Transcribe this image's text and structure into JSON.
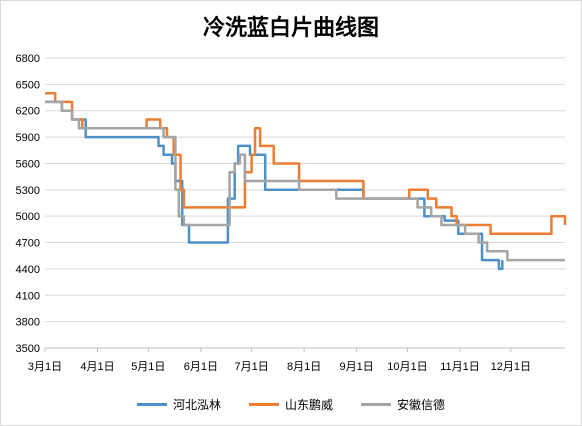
{
  "chart_data": {
    "type": "line",
    "title": "冷洗蓝白片曲线图",
    "xlabel": "",
    "ylabel": "",
    "ylim": [
      3500,
      6800
    ],
    "yticks": [
      3500,
      3800,
      4100,
      4400,
      4700,
      5000,
      5300,
      5600,
      5900,
      6200,
      6500,
      6800
    ],
    "xlim": [
      0,
      307
    ],
    "xtick_positions": [
      0,
      31,
      61,
      92,
      122,
      153,
      184,
      214,
      245,
      275
    ],
    "xtick_labels": [
      "3月1日",
      "4月1日",
      "5月1日",
      "6月1日",
      "7月1日",
      "8月1日",
      "9月1日",
      "10月1日",
      "11月1日",
      "12月1日"
    ],
    "grid": "horizontal",
    "legend_position": "bottom",
    "series": [
      {
        "name": "河北泓林",
        "color": "#4e90c8",
        "x": [
          0,
          10,
          16,
          24,
          31,
          60,
          67,
          70,
          73,
          75,
          77,
          81,
          85,
          92,
          106,
          108,
          112,
          114,
          117,
          121,
          130,
          141,
          158,
          188,
          220,
          224,
          236,
          244,
          248,
          258,
          268,
          270
        ],
        "y": [
          6300,
          6200,
          6100,
          5900,
          5900,
          5900,
          5800,
          5700,
          5700,
          5600,
          5400,
          4900,
          4700,
          4700,
          4700,
          5200,
          5600,
          5800,
          5800,
          5700,
          5300,
          5300,
          5300,
          5200,
          5200,
          5000,
          4950,
          4800,
          4800,
          4500,
          4400,
          4500
        ]
      },
      {
        "name": "山东鹏威",
        "color": "#ed7d31",
        "x": [
          0,
          6,
          16,
          22,
          31,
          60,
          68,
          72,
          74,
          76,
          80,
          82,
          84,
          92,
          114,
          118,
          120,
          122,
          124,
          127,
          135,
          144,
          150,
          160,
          170,
          188,
          215,
          226,
          231,
          240,
          243,
          263,
          294,
          299,
          307
        ],
        "y": [
          6400,
          6300,
          6100,
          6000,
          6000,
          6100,
          6000,
          5900,
          5900,
          5700,
          5300,
          5100,
          5100,
          5100,
          5100,
          5500,
          5500,
          5700,
          6000,
          5800,
          5600,
          5600,
          5400,
          5400,
          5400,
          5200,
          5300,
          5200,
          5100,
          5000,
          4900,
          4800,
          4800,
          5000,
          4900
        ]
      },
      {
        "name": "安徽信德",
        "color": "#a5a5a5",
        "x": [
          0,
          10,
          16,
          20,
          31,
          60,
          70,
          77,
          79,
          82,
          92,
          108,
          109,
          112,
          115,
          118,
          130,
          140,
          150,
          160,
          172,
          188,
          204,
          218,
          220,
          228,
          234,
          248,
          256,
          261,
          273,
          307
        ],
        "y": [
          6300,
          6200,
          6100,
          6000,
          6000,
          6000,
          5900,
          5300,
          5000,
          4900,
          4900,
          4900,
          5500,
          5600,
          5700,
          5400,
          5400,
          5400,
          5300,
          5300,
          5200,
          5200,
          5200,
          5200,
          5100,
          5000,
          4900,
          4800,
          4700,
          4600,
          4500,
          4500
        ]
      }
    ]
  }
}
